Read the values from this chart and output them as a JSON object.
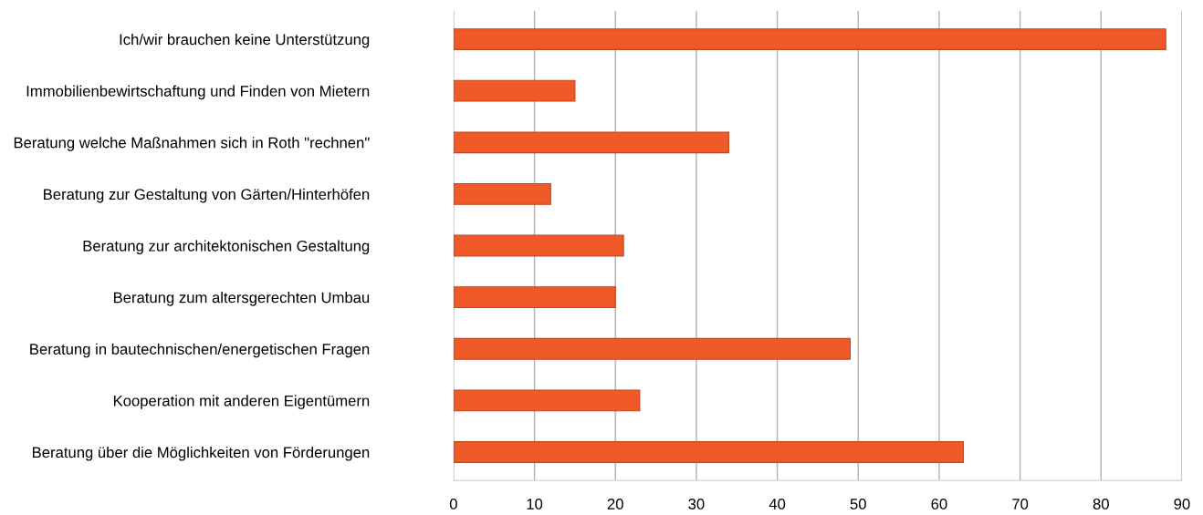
{
  "chart_data": {
    "type": "bar",
    "orientation": "horizontal",
    "categories": [
      "Ich/wir brauchen keine Unterstützung",
      "Immobilienbewirtschaftung und Finden von Mietern",
      "Beratung welche Maßnahmen sich in Roth \"rechnen\"",
      "Beratung zur Gestaltung von Gärten/Hinterhöfen",
      "Beratung zur architektonischen Gestaltung",
      "Beratung zum altersgerechten Umbau",
      "Beratung in bautechnischen/energetischen Fragen",
      "Kooperation mit anderen Eigentümern",
      "Beratung über die Möglichkeiten von Förderungen"
    ],
    "values": [
      88,
      15,
      34,
      12,
      21,
      20,
      49,
      23,
      63
    ],
    "color": "#f05a28",
    "xlim": [
      0,
      90
    ],
    "xticks": [
      0,
      10,
      20,
      30,
      40,
      50,
      60,
      70,
      80,
      90
    ],
    "grid": "x",
    "legend": false
  }
}
